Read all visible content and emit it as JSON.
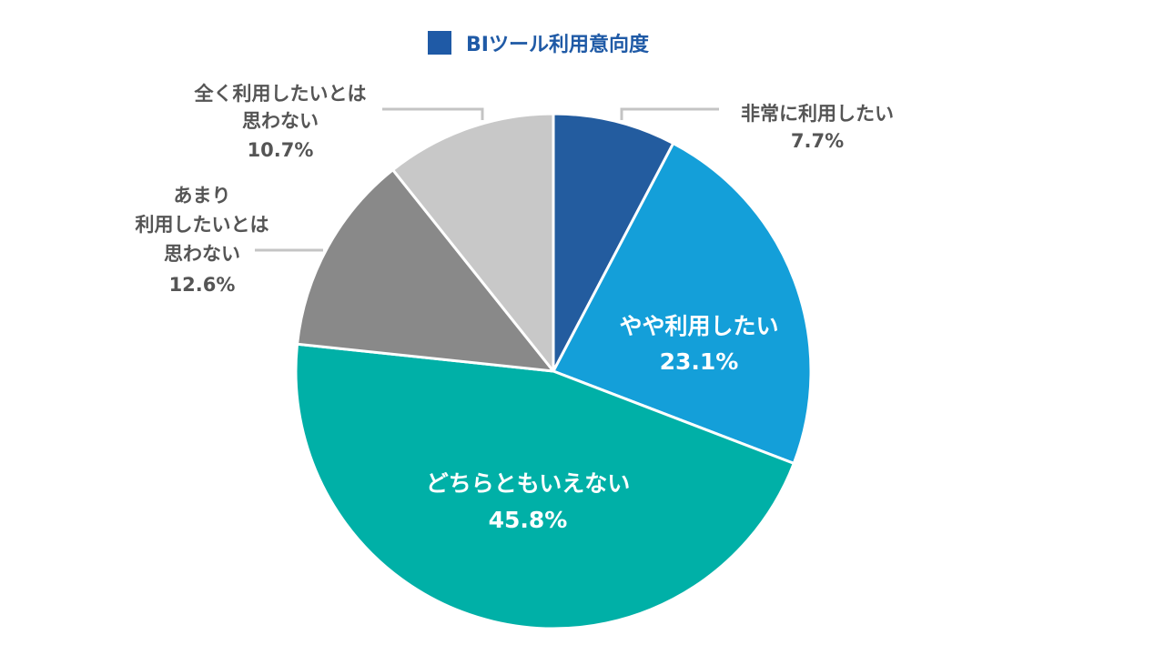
{
  "chart_data": {
    "type": "pie",
    "title": "BIツール利用意向度",
    "legend_color": "#1f5aa6",
    "start_angle_deg": 0,
    "direction": "clockwise",
    "slices": [
      {
        "label": "非常に利用したい",
        "value": 7.7,
        "value_label": "7.7%",
        "color": "#235c9f"
      },
      {
        "label": "やや利用したい",
        "value": 23.1,
        "value_label": "23.1%",
        "color": "#149fd9"
      },
      {
        "label": "どちらともいえない",
        "value": 45.8,
        "value_label": "45.8%",
        "color": "#00b0a7"
      },
      {
        "label": "あまり 利用したいとは 思わない",
        "value": 12.6,
        "value_label": "12.6%",
        "color": "#898989"
      },
      {
        "label": "全く利用したいとは 思わない",
        "value": 10.7,
        "value_label": "10.7%",
        "color": "#c8c8c8"
      }
    ]
  },
  "labels": {
    "s0": [
      "非常に利用したい"
    ],
    "s1": [
      "やや利用したい"
    ],
    "s2": [
      "どちらともいえない"
    ],
    "s3": [
      "あまり",
      "利用したいとは",
      "思わない"
    ],
    "s4": [
      "全く利用したいとは",
      "思わない"
    ]
  }
}
